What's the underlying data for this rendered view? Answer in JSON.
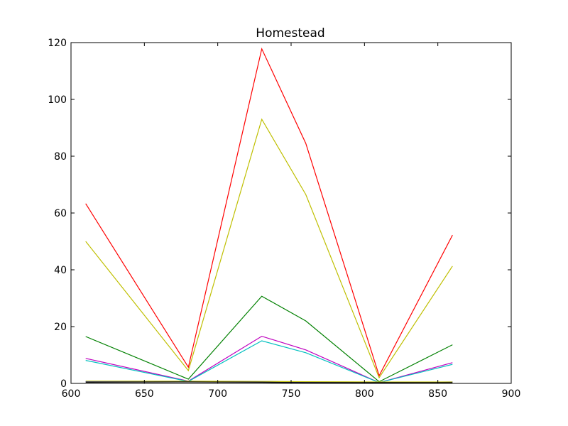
{
  "chart_data": {
    "type": "line",
    "title": "Homestead",
    "xlabel": "",
    "ylabel": "",
    "xlim": [
      600,
      900
    ],
    "ylim": [
      0,
      120
    ],
    "xticks": [
      600,
      650,
      700,
      750,
      800,
      850,
      900
    ],
    "yticks": [
      0,
      20,
      40,
      60,
      80,
      100,
      120
    ],
    "grid": false,
    "x": [
      610,
      680,
      730,
      760,
      810,
      860
    ],
    "series": [
      {
        "color": "#ff0000",
        "values": [
          63.3,
          5.7,
          117.8,
          84.5,
          2.7,
          52.2
        ]
      },
      {
        "color": "#bfbf00",
        "values": [
          50.0,
          4.5,
          93.0,
          66.5,
          2.0,
          41.3
        ]
      },
      {
        "color": "#008000",
        "values": [
          16.5,
          1.5,
          30.7,
          22.0,
          0.6,
          13.6
        ]
      },
      {
        "color": "#bf00bf",
        "values": [
          8.8,
          0.8,
          16.6,
          11.8,
          0.3,
          7.3
        ]
      },
      {
        "color": "#00bfbf",
        "values": [
          8.1,
          0.7,
          15.0,
          10.8,
          0.3,
          6.7
        ]
      },
      {
        "color": "#0000ff",
        "values": [
          0.6,
          0.6,
          0.5,
          0.4,
          0.3,
          0.5
        ]
      },
      {
        "color": "#bfbf00",
        "values": [
          0.8,
          0.8,
          0.7,
          0.6,
          0.5,
          0.5
        ]
      },
      {
        "color": "#000000",
        "values": [
          0.4,
          0.5,
          0.4,
          0.3,
          0.3,
          0.3
        ]
      }
    ]
  }
}
